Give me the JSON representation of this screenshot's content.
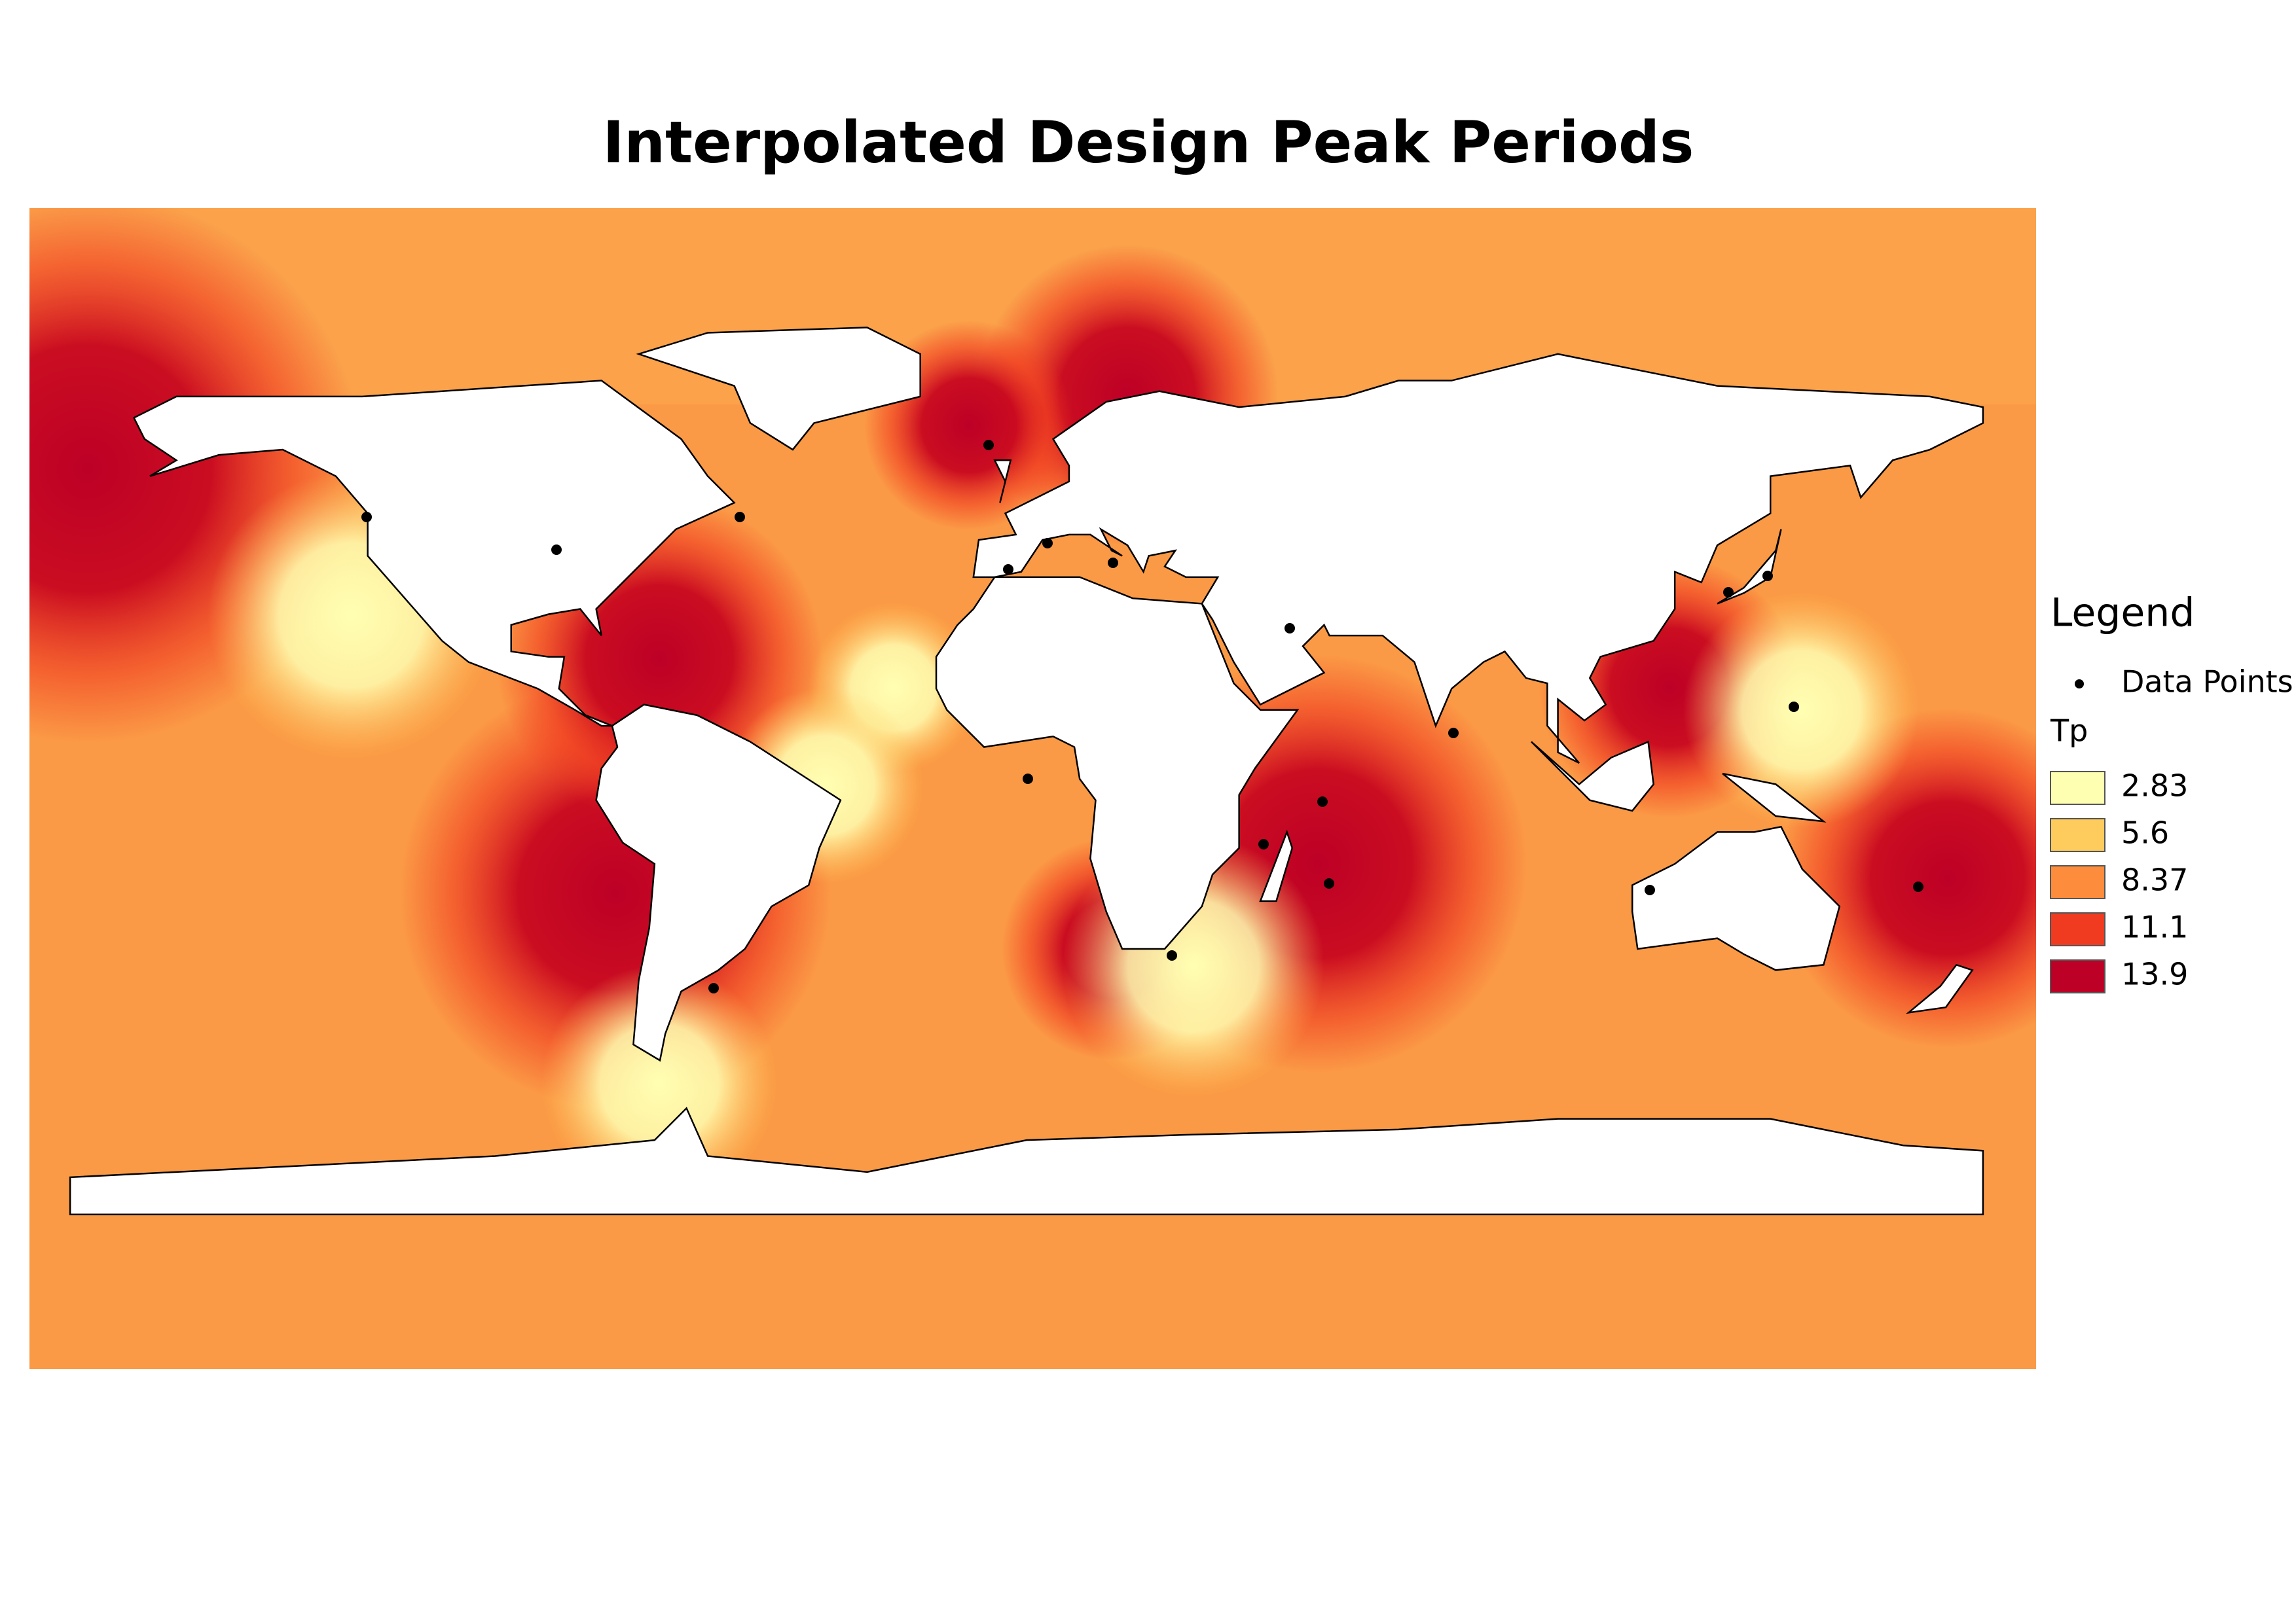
{
  "title": "Interpolated Design Peak Periods",
  "legend": {
    "title": "Legend",
    "points_label": "Data Points",
    "ramp_title": "Tp",
    "classes": [
      {
        "value": 2.83,
        "color": "#ffffb2"
      },
      {
        "value": 5.6,
        "color": "#fecc5c"
      },
      {
        "value": 8.37,
        "color": "#fd8d3c"
      },
      {
        "value": 11.1,
        "color": "#f03b20"
      },
      {
        "value": 13.9,
        "color": "#bd0026"
      }
    ]
  }
}
